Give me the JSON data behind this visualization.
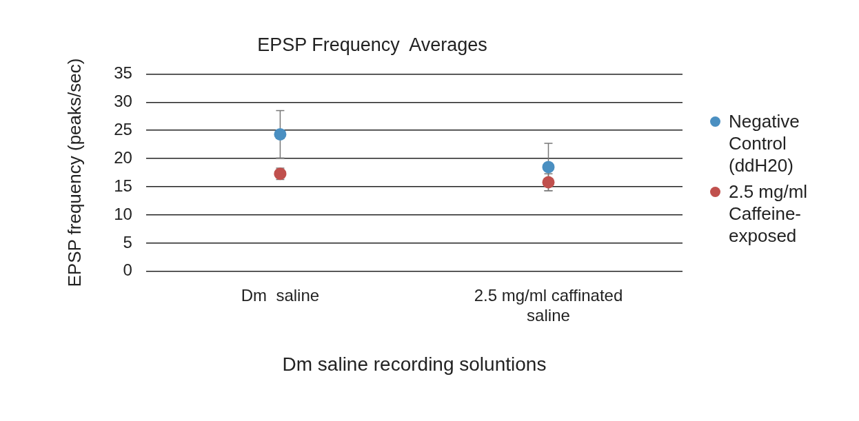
{
  "chart_data": {
    "type": "scatter",
    "title": "EPSP Frequency  Averages",
    "xlabel": "Dm saline recording soluntions",
    "ylabel": "EPSP frequency (peaks/sec)",
    "categories": [
      "Dm  saline",
      "2.5 mg/ml caffinated saline"
    ],
    "series": [
      {
        "name": "Negative Control (ddH20)",
        "color": "#4a8fc1",
        "values": [
          24.3,
          18.5
        ],
        "errors": [
          4.2,
          4.2
        ]
      },
      {
        "name": "2.5 mg/ml Caffeine-exposed",
        "color": "#c0504d",
        "values": [
          17.3,
          15.8
        ],
        "errors": [
          1.0,
          1.5
        ]
      }
    ],
    "ylim": [
      0,
      35
    ],
    "yticks": [
      0,
      5,
      10,
      15,
      20,
      25,
      30,
      35
    ],
    "grid": "y",
    "legend": "right",
    "marker": "circle"
  }
}
